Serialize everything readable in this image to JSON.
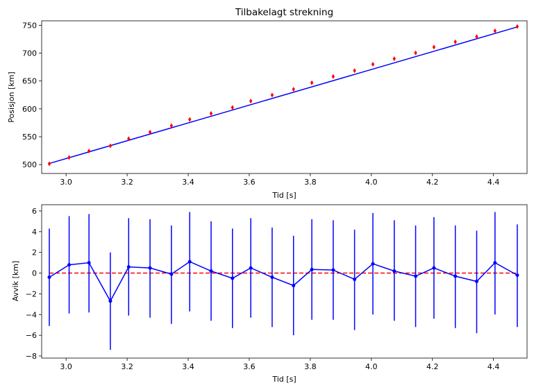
{
  "chart_data": [
    {
      "type": "scatter",
      "title": "Tilbakelagt strekning",
      "xlabel": "Tid [s]",
      "ylabel": "Posisjon [km]",
      "xlim": [
        2.92,
        4.51
      ],
      "ylim": [
        484,
        758
      ],
      "xticks": [
        3.0,
        3.2,
        3.4,
        3.6,
        3.8,
        4.0,
        4.2,
        4.4
      ],
      "yticks": [
        500,
        550,
        600,
        650,
        700,
        750
      ],
      "fit_line": {
        "color": "#0000ff",
        "x": [
          2.945,
          4.478
        ],
        "y": [
          502,
          747
        ]
      },
      "marker_color": "#ff0000",
      "x": [
        2.945,
        3.01,
        3.075,
        3.145,
        3.205,
        3.275,
        3.345,
        3.405,
        3.475,
        3.545,
        3.605,
        3.675,
        3.745,
        3.805,
        3.875,
        3.945,
        4.005,
        4.075,
        4.145,
        4.205,
        4.275,
        4.345,
        4.405,
        4.478
      ],
      "y": [
        501.5,
        512.8,
        524.3,
        533.6,
        546.4,
        558.3,
        569.8,
        581.0,
        591.8,
        602.5,
        614.0,
        624.8,
        635.1,
        646.9,
        658.0,
        668.6,
        680.0,
        690.0,
        700.4,
        710.8,
        720.1,
        729.6,
        740.0,
        747.8
      ],
      "yerr": 2
    },
    {
      "type": "line",
      "xlabel": "Tid [s]",
      "ylabel": "Avvik [km]",
      "xlim": [
        2.92,
        4.51
      ],
      "ylim": [
        -8.2,
        6.6
      ],
      "xticks": [
        3.0,
        3.2,
        3.4,
        3.6,
        3.8,
        4.0,
        4.2,
        4.4
      ],
      "yticks": [
        -8,
        -6,
        -4,
        -2,
        0,
        2,
        4,
        6
      ],
      "series_color": "#0000ff",
      "reference_line": {
        "y": 0,
        "color": "#ff0000",
        "style": "dashed"
      },
      "x": [
        2.945,
        3.01,
        3.075,
        3.145,
        3.205,
        3.275,
        3.345,
        3.405,
        3.475,
        3.545,
        3.605,
        3.675,
        3.745,
        3.805,
        3.875,
        3.945,
        4.005,
        4.075,
        4.145,
        4.205,
        4.275,
        4.345,
        4.405,
        4.478
      ],
      "y": [
        -0.4,
        0.8,
        1.0,
        -2.7,
        0.6,
        0.5,
        -0.1,
        1.1,
        0.2,
        -0.5,
        0.5,
        -0.4,
        -1.2,
        0.35,
        0.3,
        -0.6,
        0.9,
        0.2,
        -0.3,
        0.5,
        -0.3,
        -0.8,
        1.0,
        -0.2
      ],
      "err_low": [
        -5.1,
        -3.9,
        -3.8,
        -7.4,
        -4.1,
        -4.3,
        -4.9,
        -3.7,
        -4.6,
        -5.3,
        -4.3,
        -5.2,
        -6.0,
        -4.5,
        -4.5,
        -5.5,
        -4.0,
        -4.6,
        -5.2,
        -4.4,
        -5.3,
        -5.8,
        -4.0,
        -5.2
      ],
      "err_high": [
        4.3,
        5.5,
        5.7,
        2.0,
        5.3,
        5.2,
        4.6,
        5.9,
        5.0,
        4.3,
        5.3,
        4.4,
        3.6,
        5.2,
        5.1,
        4.2,
        5.8,
        5.1,
        4.6,
        5.4,
        4.6,
        4.1,
        5.9,
        4.7
      ]
    }
  ]
}
